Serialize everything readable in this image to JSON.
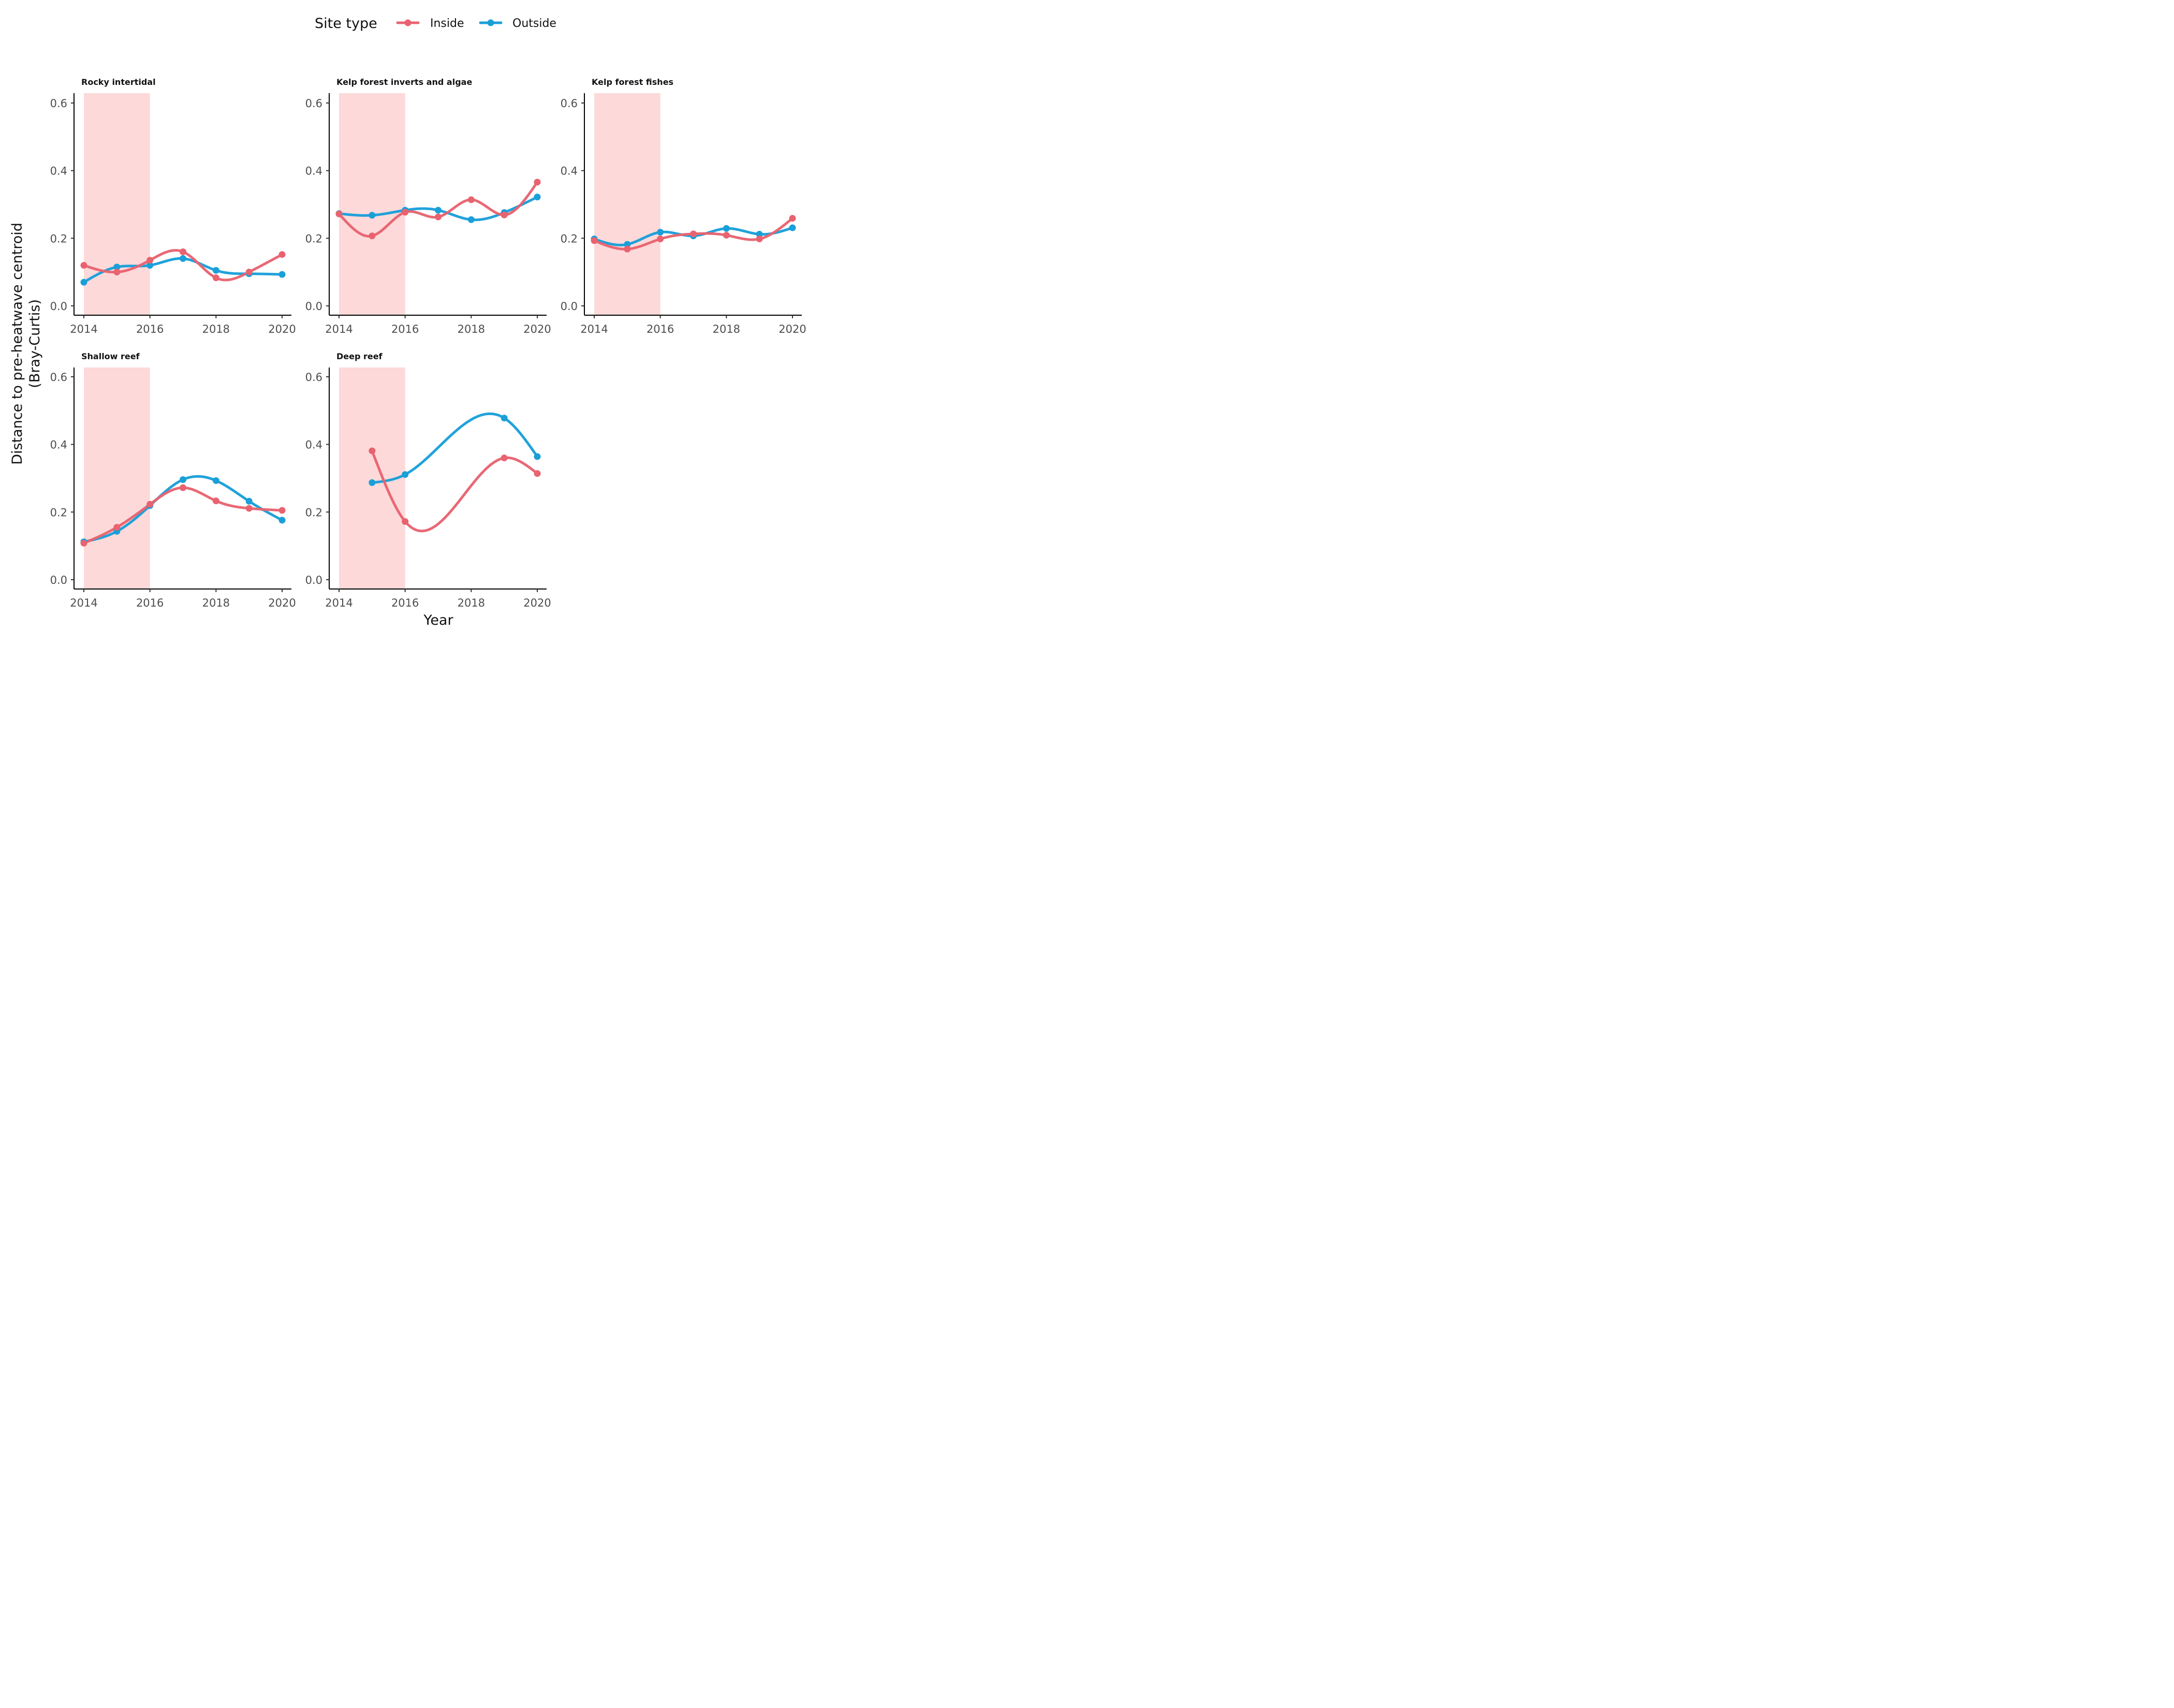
{
  "chart_data": {
    "type": "line",
    "xlabel": "Year",
    "ylabel": [
      "Distance to pre-heatwave centroid",
      "(Bray-Curtis)"
    ],
    "legend": {
      "title": "Site type",
      "position": "top",
      "entries": [
        {
          "name": "Inside",
          "color": "#e8636f"
        },
        {
          "name": "Outside",
          "color": "#1a9fd9"
        }
      ]
    },
    "xlim": [
      2014,
      2020
    ],
    "ylim": [
      0,
      0.6
    ],
    "x_ticks": [
      "2014",
      "2016",
      "2018",
      "2020"
    ],
    "y_ticks": [
      "0.0",
      "0.2",
      "0.4",
      "0.6"
    ],
    "heatwave_shading": {
      "from": 2014,
      "to": 2016,
      "color": "#fdd9da"
    },
    "panels": [
      {
        "title": "Rocky intertidal",
        "series": [
          {
            "name": "Inside",
            "x": [
              2014,
              2015,
              2016,
              2017,
              2018,
              2019,
              2020
            ],
            "y": [
              0.12,
              0.1,
              0.135,
              0.16,
              0.083,
              0.1,
              0.152
            ]
          },
          {
            "name": "Outside",
            "x": [
              2014,
              2015,
              2016,
              2017,
              2018,
              2019,
              2020
            ],
            "y": [
              0.07,
              0.115,
              0.12,
              0.14,
              0.105,
              0.095,
              0.093
            ]
          }
        ]
      },
      {
        "title": "Kelp forest inverts and algae",
        "series": [
          {
            "name": "Inside",
            "x": [
              2014,
              2015,
              2016,
              2017,
              2018,
              2019,
              2020
            ],
            "y": [
              0.272,
              0.207,
              0.277,
              0.263,
              0.314,
              0.269,
              0.366
            ]
          },
          {
            "name": "Outside",
            "x": [
              2014,
              2015,
              2016,
              2017,
              2018,
              2019,
              2020
            ],
            "y": [
              0.273,
              0.268,
              0.283,
              0.283,
              0.255,
              0.276,
              0.322
            ]
          }
        ]
      },
      {
        "title": "Kelp forest fishes",
        "series": [
          {
            "name": "Inside",
            "x": [
              2014,
              2015,
              2016,
              2017,
              2018,
              2019,
              2020
            ],
            "y": [
              0.193,
              0.168,
              0.198,
              0.213,
              0.209,
              0.198,
              0.259
            ]
          },
          {
            "name": "Outside",
            "x": [
              2014,
              2015,
              2016,
              2017,
              2018,
              2019,
              2020
            ],
            "y": [
              0.198,
              0.182,
              0.218,
              0.207,
              0.229,
              0.212,
              0.231
            ]
          }
        ]
      },
      {
        "title": "Shallow reef",
        "series": [
          {
            "name": "Inside",
            "x": [
              2014,
              2015,
              2016,
              2017,
              2018,
              2019,
              2020
            ],
            "y": [
              0.108,
              0.155,
              0.223,
              0.272,
              0.233,
              0.211,
              0.205
            ]
          },
          {
            "name": "Outside",
            "x": [
              2014,
              2015,
              2016,
              2017,
              2018,
              2019,
              2020
            ],
            "y": [
              0.112,
              0.143,
              0.219,
              0.296,
              0.293,
              0.232,
              0.176
            ]
          }
        ]
      },
      {
        "title": "Deep reef",
        "series": [
          {
            "name": "Inside",
            "x": [
              2015,
              2016,
              2019,
              2020
            ],
            "y": [
              0.381,
              0.172,
              0.36,
              0.314
            ]
          },
          {
            "name": "Outside",
            "x": [
              2015,
              2016,
              2019,
              2020
            ],
            "y": [
              0.287,
              0.311,
              0.478,
              0.364
            ]
          }
        ]
      }
    ]
  }
}
